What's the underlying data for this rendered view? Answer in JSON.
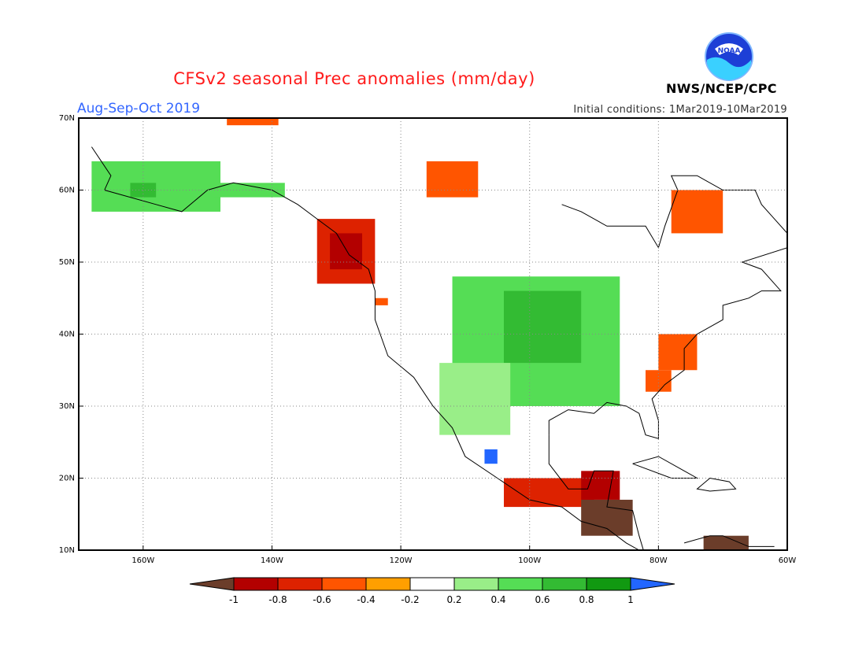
{
  "header": {
    "title": "CFSv2 seasonal Prec anomalies (mm/day)",
    "period": "Aug-Sep-Oct 2019",
    "initial_conditions": "Initial conditions: 1Mar2019-10Mar2019",
    "agency": "NWS/NCEP/CPC",
    "logo_text": "NOAA"
  },
  "map": {
    "lon_range": [
      -170,
      -60
    ],
    "lat_range": [
      10,
      70
    ],
    "projection": "plate carree",
    "grid": true,
    "lat_labels": [
      "70N",
      "60N",
      "50N",
      "40N",
      "30N",
      "20N",
      "10N"
    ],
    "lon_labels": [
      "160W",
      "140W",
      "120W",
      "100W",
      "80W",
      "60W"
    ],
    "anomaly_regions": [
      {
        "name": "alaska-west",
        "lon": [
          -168,
          -148
        ],
        "lat": [
          57,
          64
        ],
        "category": "0.4"
      },
      {
        "name": "alaska-core",
        "lon": [
          -162,
          -158
        ],
        "lat": [
          59,
          61
        ],
        "category": "0.6"
      },
      {
        "name": "alaska-south",
        "lon": [
          -149,
          -138
        ],
        "lat": [
          59,
          61
        ],
        "category": "0.4"
      },
      {
        "name": "yukon-north-orange",
        "lon": [
          -147,
          -139
        ],
        "lat": [
          69,
          70
        ],
        "category": "-0.4"
      },
      {
        "name": "bc-coast-dry",
        "lon": [
          -133,
          -124
        ],
        "lat": [
          47,
          56
        ],
        "category": "-0.6"
      },
      {
        "name": "bc-coast-very-dry",
        "lon": [
          -131,
          -126
        ],
        "lat": [
          49,
          54
        ],
        "category": "-0.8"
      },
      {
        "name": "oregon-dry",
        "lon": [
          -124,
          -122
        ],
        "lat": [
          44,
          45
        ],
        "category": "-0.4"
      },
      {
        "name": "great-slave-dry",
        "lon": [
          -116,
          -108
        ],
        "lat": [
          59,
          64
        ],
        "category": "-0.4"
      },
      {
        "name": "quebec-dry",
        "lon": [
          -78,
          -70
        ],
        "lat": [
          54,
          60
        ],
        "category": "-0.4"
      },
      {
        "name": "plains-wet",
        "lon": [
          -112,
          -86
        ],
        "lat": [
          30,
          48
        ],
        "category": "0.4"
      },
      {
        "name": "plains-core",
        "lon": [
          -104,
          -92
        ],
        "lat": [
          36,
          46
        ],
        "category": "0.6"
      },
      {
        "name": "southwest-wet",
        "lon": [
          -114,
          -103
        ],
        "lat": [
          26,
          36
        ],
        "category": "0.2"
      },
      {
        "name": "mid-atlantic-dry",
        "lon": [
          -80,
          -74
        ],
        "lat": [
          35,
          40
        ],
        "category": "-0.4"
      },
      {
        "name": "carolinas-dry",
        "lon": [
          -82,
          -78
        ],
        "lat": [
          32,
          35
        ],
        "category": "-0.4"
      },
      {
        "name": "mexico-south-dry",
        "lon": [
          -104,
          -90
        ],
        "lat": [
          16,
          20
        ],
        "category": "-0.6"
      },
      {
        "name": "central-america-very-dry",
        "lon": [
          -92,
          -84
        ],
        "lat": [
          12,
          17
        ],
        "category": "-1"
      },
      {
        "name": "yucatan-dry",
        "lon": [
          -92,
          -86
        ],
        "lat": [
          17,
          21
        ],
        "category": "-0.8"
      },
      {
        "name": "venezuela-very-dry",
        "lon": [
          -73,
          -66
        ],
        "lat": [
          10,
          12
        ],
        "category": "-1"
      },
      {
        "name": "sinaloa-wet",
        "lon": [
          -107,
          -105
        ],
        "lat": [
          22,
          24
        ],
        "category": "1"
      }
    ]
  },
  "colorbar": {
    "labels": [
      "-1",
      "-0.8",
      "-0.6",
      "-0.4",
      "-0.2",
      "0.2",
      "0.4",
      "0.6",
      "0.8",
      "1"
    ],
    "colors": [
      "#6b3d2a",
      "#b30000",
      "#dd2200",
      "#ff5500",
      "#ff9f00",
      "#ffffff",
      "#99ee88",
      "#55dd55",
      "#33bb33",
      "#119911",
      "#2266ff"
    ]
  }
}
